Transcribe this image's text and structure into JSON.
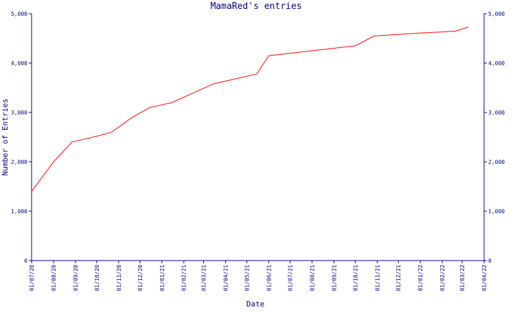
{
  "chart_data": {
    "type": "line",
    "title": "MamaRed's entries",
    "xlabel": "Date",
    "ylabel": "Number of Entries",
    "ylim": [
      0,
      5000
    ],
    "yticks": [
      "0",
      "1,000",
      "2,000",
      "3,000",
      "4,000",
      "5,000"
    ],
    "ytick_values": [
      0,
      1000,
      2000,
      3000,
      4000,
      5000
    ],
    "xticks": [
      "01/07/20",
      "01/08/20",
      "01/09/20",
      "01/10/20",
      "01/11/20",
      "01/12/20",
      "01/01/21",
      "01/02/21",
      "01/03/21",
      "01/04/21",
      "01/05/21",
      "01/06/21",
      "01/07/21",
      "01/08/21",
      "01/09/21",
      "01/10/21",
      "01/11/21",
      "01/12/21",
      "01/01/22",
      "01/02/22",
      "01/03/22",
      "01/04/22"
    ],
    "grid": false,
    "right_axis_duplicate": true,
    "colors": {
      "axis": "#000080",
      "line": "#ff0000",
      "text": "#000080",
      "background": "#ffffff"
    },
    "series": [
      {
        "x": [
          "2020-07-01",
          "2020-08-01",
          "2020-08-27",
          "2020-10-01",
          "2020-10-22",
          "2020-11-20",
          "2020-12-15",
          "2021-01-15",
          "2021-02-15",
          "2021-03-15",
          "2021-04-15",
          "2021-05-15",
          "2021-06-01",
          "2021-07-01",
          "2021-08-01",
          "2021-09-01",
          "2021-10-01",
          "2021-10-28",
          "2021-12-01",
          "2022-01-01",
          "2022-02-01",
          "2022-02-20",
          "2022-03-10"
        ],
        "y": [
          1400,
          2000,
          2400,
          2520,
          2600,
          2900,
          3100,
          3200,
          3400,
          3580,
          3680,
          3780,
          4150,
          4200,
          4250,
          4300,
          4350,
          4550,
          4580,
          4610,
          4630,
          4650,
          4730
        ]
      }
    ]
  }
}
